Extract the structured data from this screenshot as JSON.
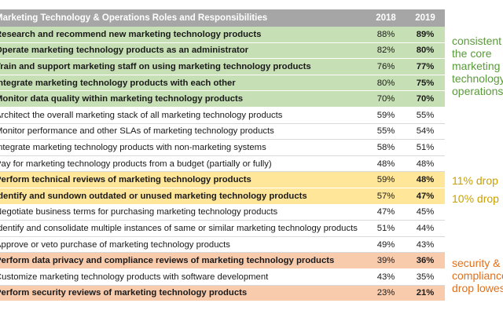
{
  "table": {
    "header": {
      "role": "Marketing Technology & Operations Roles and Responsibilities",
      "y2018": "2018",
      "y2019": "2019"
    },
    "rows": [
      {
        "role": "Research and recommend new marketing technology products",
        "y2018": "88%",
        "y2019": "89%",
        "color": "green",
        "bold": true
      },
      {
        "role": "Operate marketing technology products as an administrator",
        "y2018": "82%",
        "y2019": "80%",
        "color": "green",
        "bold": true
      },
      {
        "role": "Train and support marketing staff on using marketing technology products",
        "y2018": "76%",
        "y2019": "77%",
        "color": "green",
        "bold": true
      },
      {
        "role": "Integrate marketing technology products with each other",
        "y2018": "80%",
        "y2019": "75%",
        "color": "green",
        "bold": true
      },
      {
        "role": "Monitor data quality within marketing technology products",
        "y2018": "70%",
        "y2019": "70%",
        "color": "green",
        "bold": true
      },
      {
        "role": "Architect the overall marketing stack of all marketing technology products",
        "y2018": "59%",
        "y2019": "55%",
        "color": "white",
        "bold": false
      },
      {
        "role": "Monitor performance and other SLAs of marketing technology products",
        "y2018": "55%",
        "y2019": "54%",
        "color": "white",
        "bold": false
      },
      {
        "role": "Integrate marketing technology products with non-marketing systems",
        "y2018": "58%",
        "y2019": "51%",
        "color": "white",
        "bold": false
      },
      {
        "role": "Pay for marketing technology products from a budget (partially or fully)",
        "y2018": "48%",
        "y2019": "48%",
        "color": "white",
        "bold": false
      },
      {
        "role": "Perform technical reviews of marketing technology products",
        "y2018": "59%",
        "y2019": "48%",
        "color": "yellow",
        "bold": true
      },
      {
        "role": "Identify and sundown outdated or unused marketing technology products",
        "y2018": "57%",
        "y2019": "47%",
        "color": "yellow",
        "bold": true
      },
      {
        "role": "Negotiate business terms for purchasing marketing technology products",
        "y2018": "47%",
        "y2019": "45%",
        "color": "white",
        "bold": false
      },
      {
        "role": "Identify and consolidate multiple instances of same or similar marketing technology products",
        "y2018": "51%",
        "y2019": "44%",
        "color": "white",
        "bold": false
      },
      {
        "role": "Approve or veto purchase of marketing technology products",
        "y2018": "49%",
        "y2019": "43%",
        "color": "white",
        "bold": false
      },
      {
        "role": "Perform data privacy and compliance reviews of marketing technology products",
        "y2018": "39%",
        "y2019": "36%",
        "color": "orange",
        "bold": true
      },
      {
        "role": "Customize marketing technology products with software development",
        "y2018": "43%",
        "y2019": "35%",
        "color": "white",
        "bold": false
      },
      {
        "role": "Perform security reviews of marketing technology products",
        "y2018": "23%",
        "y2019": "21%",
        "color": "orange",
        "bold": true
      }
    ]
  },
  "notes": {
    "green": [
      "consistent",
      "the core",
      "marketing",
      "technology",
      "operations"
    ],
    "yellow1": "11% drop",
    "yellow2": "10% drop",
    "orange": [
      "security &",
      "compliance",
      "drop lowest"
    ]
  }
}
